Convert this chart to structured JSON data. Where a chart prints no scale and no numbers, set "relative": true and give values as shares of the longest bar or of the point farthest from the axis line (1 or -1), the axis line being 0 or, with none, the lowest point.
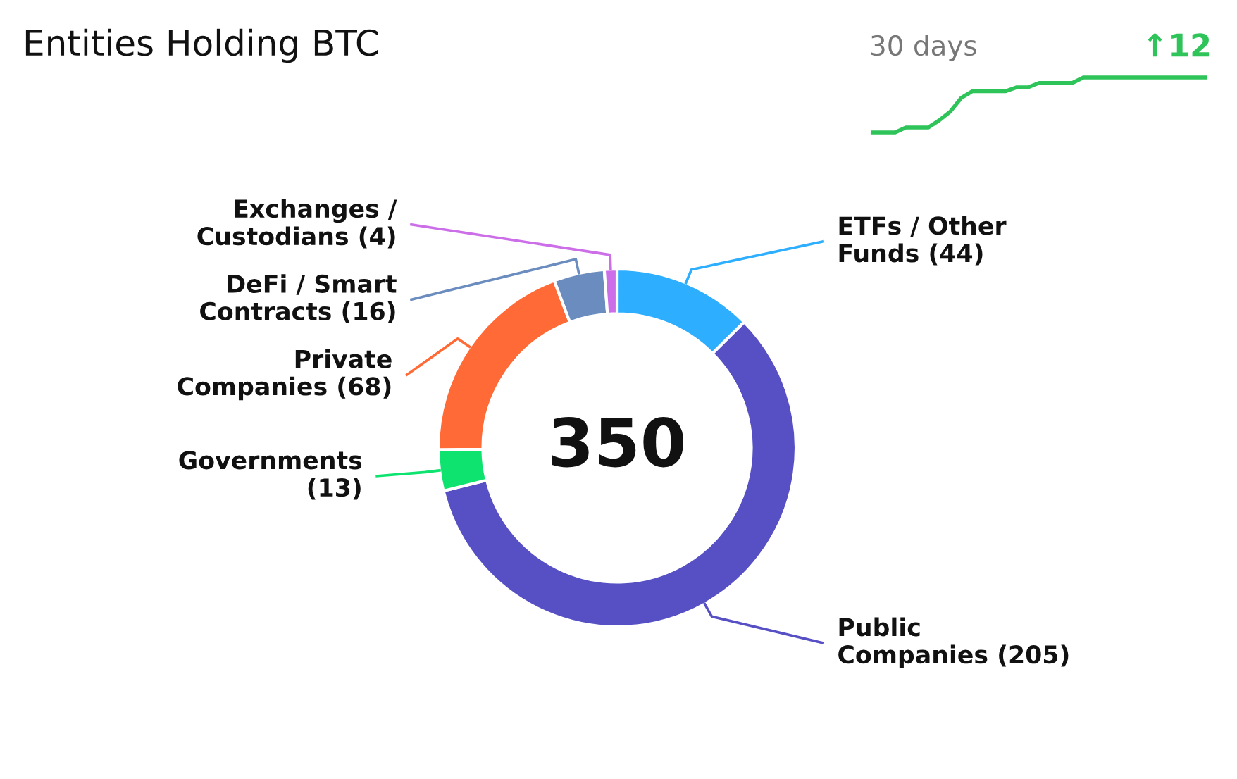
{
  "chart_data": [
    {
      "type": "other",
      "title": "Entities Holding BTC"
    },
    {
      "type": "donut",
      "categories": [
        "ETFs / Other Funds (44)",
        "Public Companies (205)",
        "Governments (13)",
        "Private Companies (68)",
        "DeFi / Smart Contracts (16)",
        "Exchanges / Custodians (4)"
      ],
      "values": [
        44,
        205,
        13,
        68,
        16,
        4
      ],
      "colors": [
        "#2eaeff",
        "#5650c4",
        "#0ee36f",
        "#ff6a36",
        "#6b8cbf",
        "#cc6ee8"
      ],
      "annotations": [
        "350"
      ]
    },
    {
      "type": "line",
      "title": "30 days",
      "relative": true,
      "tick_labels": false,
      "annotations": [
        "↑12"
      ],
      "categories": [
        null,
        null,
        null,
        null,
        null,
        null,
        null,
        null,
        null,
        null,
        null,
        null,
        null,
        null,
        null,
        null,
        null,
        null,
        null,
        null,
        null,
        null,
        null,
        null,
        null,
        null,
        null,
        null,
        null,
        null,
        null
      ],
      "series": [
        {
          "color": "#2ec45a",
          "values": [
            0,
            0,
            0,
            0.09,
            0.09,
            0.09,
            0.22,
            0.38,
            0.63,
            0.75,
            0.75,
            0.75,
            0.75,
            0.82,
            0.82,
            0.9,
            0.9,
            0.9,
            0.9,
            1,
            1,
            1,
            1,
            1,
            1,
            1,
            1,
            1,
            1,
            1,
            1
          ]
        }
      ]
    }
  ]
}
